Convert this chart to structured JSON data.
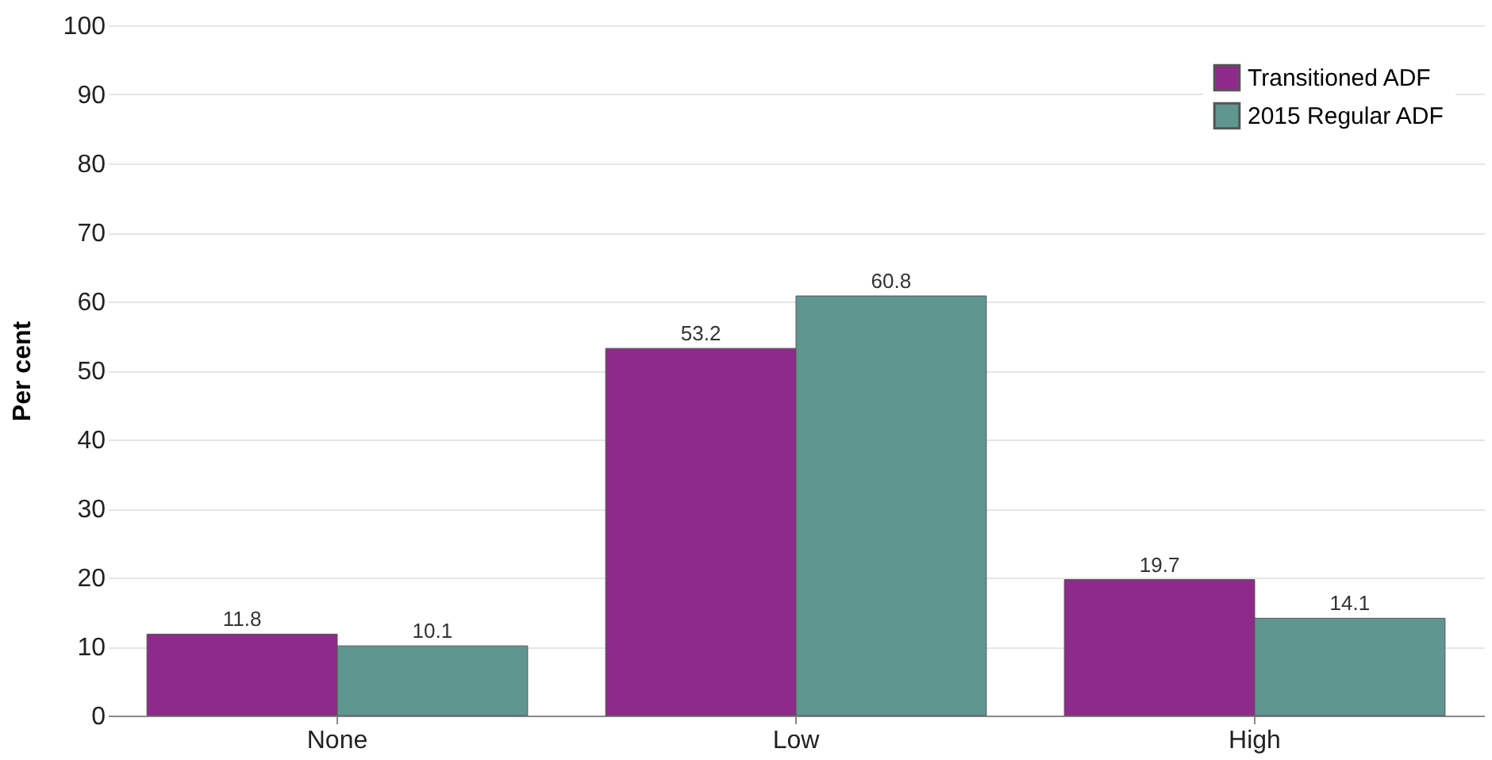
{
  "chart_data": {
    "type": "bar",
    "ylabel": "Per cent",
    "categories": [
      "None",
      "Low",
      "High"
    ],
    "series": [
      {
        "name": "Transitioned ADF",
        "color": "#8e2a8a",
        "values": [
          11.8,
          53.2,
          19.7
        ]
      },
      {
        "name": "2015 Regular ADF",
        "color": "#5f9690",
        "values": [
          10.1,
          60.8,
          14.1
        ]
      }
    ],
    "ylim": [
      0,
      100
    ],
    "yticks": [
      0,
      10,
      20,
      30,
      40,
      50,
      60,
      70,
      80,
      90,
      100
    ],
    "grid": "y",
    "legend": "top right",
    "data_labels": true
  }
}
